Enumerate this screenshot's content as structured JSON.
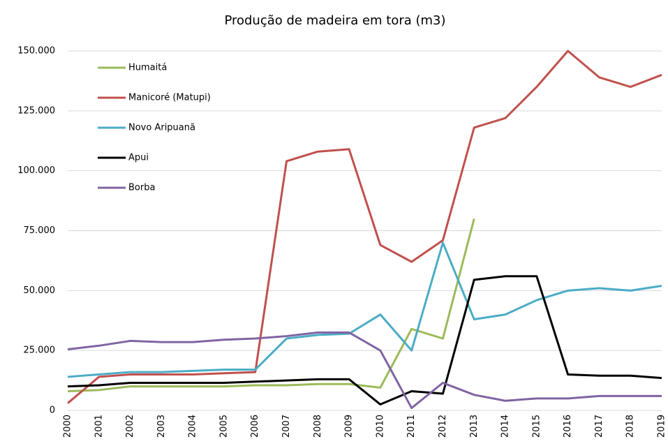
{
  "chart_data": {
    "type": "line",
    "title": "Produção de madeira em tora (m3)",
    "categories": [
      "2000",
      "2001",
      "2002",
      "2003",
      "2004",
      "2005",
      "2006",
      "2007",
      "2008",
      "2009",
      "2010",
      "2011",
      "2012",
      "2013",
      "2014",
      "2015",
      "2016",
      "2017",
      "2018",
      "2019"
    ],
    "series": [
      {
        "name": "Humaitá",
        "color": "#9bbb59",
        "values": [
          8000,
          8500,
          10000,
          10000,
          10000,
          10000,
          10500,
          10500,
          11000,
          11000,
          9500,
          34000,
          30000,
          80000,
          null,
          null,
          null,
          null,
          null,
          null
        ]
      },
      {
        "name": "Manicoré (Matupi)",
        "color": "#c0504d",
        "values": [
          3000,
          14000,
          15000,
          15000,
          15000,
          15500,
          16000,
          104000,
          108000,
          109000,
          69000,
          62000,
          71000,
          118000,
          122000,
          135000,
          150000,
          139000,
          135000,
          140000
        ]
      },
      {
        "name": "Novo Aripuanã",
        "color": "#4bacc6",
        "values": [
          14000,
          15000,
          16000,
          16000,
          16500,
          17000,
          17000,
          30000,
          31500,
          32000,
          40000,
          25000,
          70000,
          38000,
          40000,
          46000,
          50000,
          51000,
          50000,
          52000
        ]
      },
      {
        "name": "Apui",
        "color": "#000000",
        "values": [
          10000,
          10500,
          11500,
          11500,
          11500,
          11500,
          12000,
          12500,
          13000,
          13000,
          2500,
          8000,
          7000,
          54500,
          56000,
          56000,
          15000,
          14500,
          14500,
          13500
        ]
      },
      {
        "name": "Borba",
        "color": "#8064a2",
        "values": [
          25500,
          27000,
          29000,
          28500,
          28500,
          29500,
          30000,
          31000,
          32500,
          32500,
          25000,
          1000,
          11500,
          6500,
          4000,
          5000,
          5000,
          6000,
          6000,
          6000
        ]
      }
    ],
    "ylim": [
      0,
      150000
    ],
    "yticks": [
      0,
      {
        "value": 25000,
        "label": "25.000"
      },
      {
        "value": 50000,
        "label": "50.000"
      },
      {
        "value": 75000,
        "label": "75.000"
      },
      {
        "value": 100000,
        "label": "100.000"
      },
      {
        "value": 125000,
        "label": "125.000"
      },
      {
        "value": 150000,
        "label": "150.000"
      }
    ],
    "grid": true,
    "legend": "upper left"
  }
}
